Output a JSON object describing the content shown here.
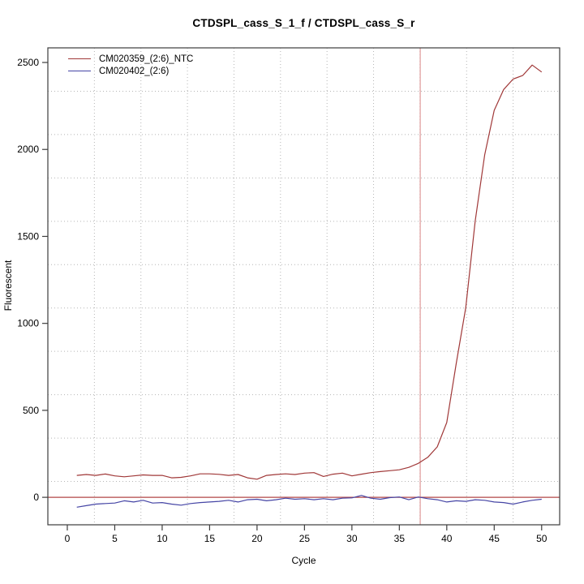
{
  "page": {
    "background": "#ffffff"
  },
  "chart_data": {
    "type": "line",
    "title": "CTDSPL_cass_S_1_f / CTDSPL_cass_S_r",
    "xlabel": "Cycle",
    "ylabel": "Fluorescent",
    "xlim": [
      -2.05,
      51.9
    ],
    "ylim": [
      -158,
      2584
    ],
    "x_ticks": [
      0,
      5,
      10,
      15,
      20,
      25,
      30,
      35,
      40,
      45,
      50
    ],
    "y_ticks": [
      0,
      500,
      1000,
      1500,
      2000,
      2500
    ],
    "grid": {
      "show": true,
      "cells_x": 11,
      "cells_y": 11,
      "color": "#b5b5b5",
      "style": "dotted"
    },
    "axis_color": "#3d3d3d",
    "legend_position": "top-left",
    "x": [
      1,
      2,
      3,
      4,
      5,
      6,
      7,
      8,
      9,
      10,
      11,
      12,
      13,
      14,
      15,
      16,
      17,
      18,
      19,
      20,
      21,
      22,
      23,
      24,
      25,
      26,
      27,
      28,
      29,
      30,
      31,
      32,
      33,
      34,
      35,
      36,
      37,
      38,
      39,
      40,
      41,
      42,
      43,
      44,
      45,
      46,
      47,
      48,
      49,
      50
    ],
    "series": [
      {
        "name": "CM020359_(2:6)_NTC",
        "color": "#a03838",
        "values": [
          126,
          131,
          126,
          134,
          123,
          118,
          123,
          129,
          126,
          126,
          112,
          115,
          123,
          135,
          135,
          132,
          126,
          131,
          112,
          104,
          126,
          131,
          135,
          131,
          139,
          142,
          120,
          133,
          139,
          123,
          133,
          142,
          148,
          153,
          158,
          172,
          195,
          230,
          290,
          430,
          770,
          1090,
          1590,
          1970,
          2225,
          2345,
          2405,
          2425,
          2485,
          2445
        ]
      },
      {
        "name": "CM020402_(2:6)",
        "color": "#4545a5",
        "values": [
          -57,
          -48,
          -39,
          -36,
          -33,
          -20,
          -27,
          -17,
          -33,
          -30,
          -39,
          -45,
          -36,
          -30,
          -27,
          -23,
          -17,
          -27,
          -14,
          -11,
          -20,
          -14,
          -5,
          -11,
          -8,
          -14,
          -8,
          -14,
          -5,
          -3,
          11,
          -5,
          -11,
          -2,
          2,
          -14,
          2,
          -8,
          -14,
          -27,
          -20,
          -23,
          -14,
          -17,
          -27,
          -30,
          -39,
          -27,
          -17,
          -11
        ]
      }
    ],
    "zero_line": {
      "y": 0,
      "color": "#b24646"
    },
    "threshold_line": {
      "orientation": "vertical",
      "x": 37.2,
      "color": "#d98585"
    }
  }
}
